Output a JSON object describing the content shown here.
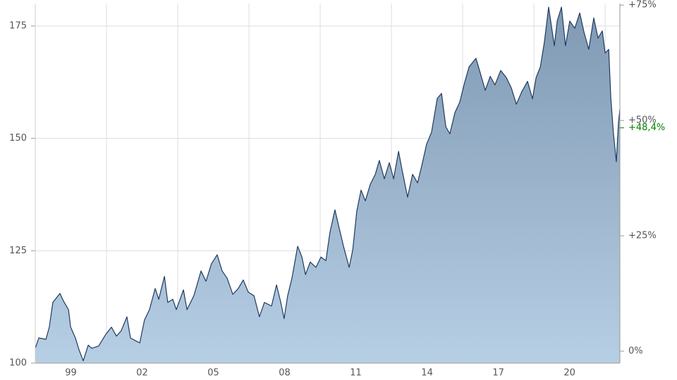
{
  "chart_data": {
    "type": "area",
    "x": [
      1998.0,
      1998.15,
      1998.45,
      1998.59,
      1998.74,
      1999.04,
      1999.19,
      1999.4,
      1999.49,
      1999.69,
      1999.84,
      2000.02,
      2000.23,
      2000.38,
      2000.67,
      2000.97,
      2001.21,
      2001.42,
      2001.62,
      2001.86,
      2002.01,
      2002.25,
      2002.4,
      2002.6,
      2002.81,
      2003.05,
      2003.2,
      2003.44,
      2003.58,
      2003.79,
      2003.94,
      2004.24,
      2004.39,
      2004.68,
      2004.98,
      2005.19,
      2005.42,
      2005.66,
      2005.87,
      2006.08,
      2006.32,
      2006.55,
      2006.76,
      2006.97,
      2007.21,
      2007.44,
      2007.65,
      2007.95,
      2008.16,
      2008.34,
      2008.48,
      2008.63,
      2008.81,
      2009.05,
      2009.23,
      2009.38,
      2009.58,
      2009.82,
      2010.03,
      2010.24,
      2010.41,
      2010.62,
      2010.77,
      2010.98,
      2011.22,
      2011.37,
      2011.54,
      2011.72,
      2011.9,
      2012.11,
      2012.32,
      2012.49,
      2012.7,
      2012.91,
      2013.09,
      2013.3,
      2013.44,
      2013.68,
      2013.89,
      2014.1,
      2014.28,
      2014.48,
      2014.69,
      2014.93,
      2015.11,
      2015.29,
      2015.46,
      2015.67,
      2015.88,
      2016.06,
      2016.27,
      2016.56,
      2016.71,
      2016.95,
      2017.16,
      2017.36,
      2017.6,
      2017.84,
      2018.05,
      2018.26,
      2018.49,
      2018.73,
      2018.94,
      2019.09,
      2019.27,
      2019.44,
      2019.62,
      2019.86,
      2019.98,
      2020.16,
      2020.33,
      2020.51,
      2020.72,
      2020.93,
      2021.11,
      2021.31,
      2021.52,
      2021.7,
      2021.88,
      2022.0,
      2022.15,
      2022.24,
      2022.35,
      2022.47,
      2022.56,
      2022.62
    ],
    "values": [
      103.3,
      105.6,
      105.3,
      108,
      113.5,
      115.5,
      113.8,
      111.9,
      108,
      105.6,
      103,
      100.5,
      104,
      103.3,
      103.8,
      106.4,
      108,
      106,
      107.2,
      110.3,
      105.6,
      104.9,
      104.5,
      109.6,
      111.9,
      116.6,
      114.2,
      119.3,
      113.5,
      114.2,
      111.9,
      116.3,
      111.9,
      115,
      120.5,
      118.2,
      122.1,
      124.1,
      120.5,
      118.9,
      115.3,
      116.6,
      118.5,
      115.8,
      115,
      110.3,
      113.5,
      112.7,
      117.4,
      113.5,
      109.9,
      115,
      118.9,
      126,
      123.6,
      119.7,
      122.5,
      121.3,
      123.6,
      122.8,
      129.1,
      134.1,
      130.7,
      126,
      121.3,
      125.2,
      133.8,
      138.5,
      136.1,
      139.8,
      142,
      145.1,
      141,
      144.6,
      141,
      147.1,
      143.2,
      136.9,
      142,
      140.1,
      144,
      148.7,
      151.4,
      158.9,
      160,
      152.6,
      151,
      155.7,
      158.1,
      162,
      165.9,
      167.8,
      165.1,
      160.7,
      163.8,
      161.9,
      165.1,
      163.5,
      161.2,
      157.6,
      160.4,
      162.7,
      158.8,
      163.5,
      165.9,
      171.4,
      179.2,
      170.6,
      176.1,
      179.2,
      170.6,
      176.1,
      174.5,
      177.9,
      173.6,
      169.8,
      176.8,
      172.3,
      173.9,
      169,
      169.8,
      158.9,
      151,
      144.8,
      153.4,
      156.5
    ],
    "color": "#1f3a5f",
    "xlim": [
      1998,
      2022.62
    ],
    "xticks": [
      {
        "value": 1999.5,
        "label": "99"
      },
      {
        "value": 2002.5,
        "label": "02"
      },
      {
        "value": 2005.5,
        "label": "05"
      },
      {
        "value": 2008.5,
        "label": "08"
      },
      {
        "value": 2011.5,
        "label": "11"
      },
      {
        "value": 2014.5,
        "label": "14"
      },
      {
        "value": 2017.5,
        "label": "17"
      },
      {
        "value": 2020.5,
        "label": "20"
      }
    ],
    "xgrid": [
      2001,
      2004,
      2007,
      2010,
      2013,
      2016,
      2019,
      2022
    ],
    "ylim": [
      100,
      180
    ],
    "yticks": [
      100,
      125,
      150,
      175
    ],
    "y2lim": [
      -2.59,
      75.34
    ],
    "y2ticks": [
      {
        "value": 0,
        "label": "0%"
      },
      {
        "value": 25,
        "label": "+25%"
      },
      {
        "value": 50,
        "label": "+50%"
      },
      {
        "value": 75,
        "label": "+75%"
      }
    ],
    "annotation": {
      "value": 48.4,
      "label": "+48,4%",
      "axis": "y2",
      "color": "#008000"
    },
    "grid": true
  }
}
